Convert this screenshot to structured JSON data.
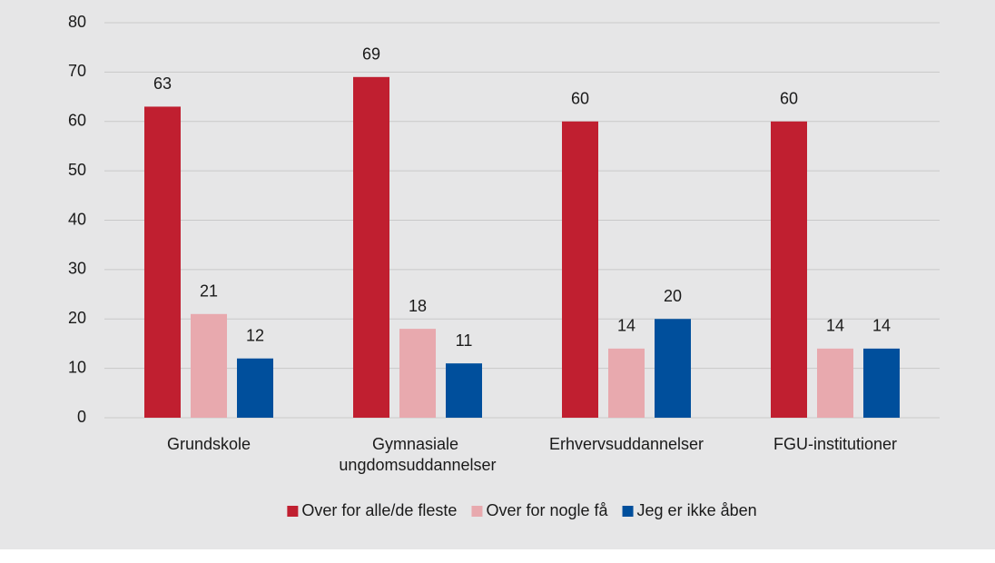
{
  "chart_data": {
    "type": "bar",
    "categories": [
      "Grundskole",
      "Gymnasiale ungdomsuddannelser",
      "Erhvervsuddannelser",
      "FGU-institutioner"
    ],
    "series": [
      {
        "name": "Over for alle/de fleste",
        "color": "#c01f30",
        "values": [
          63,
          69,
          60,
          60
        ]
      },
      {
        "name": "Over for nogle få",
        "color": "#e8a9ae",
        "values": [
          21,
          18,
          14,
          14
        ]
      },
      {
        "name": "Jeg er ikke åben",
        "color": "#004f9c",
        "values": [
          12,
          11,
          20,
          14
        ]
      }
    ],
    "ylim": [
      0,
      80
    ],
    "yticks": [
      0,
      10,
      20,
      30,
      40,
      50,
      60,
      70,
      80
    ],
    "grid": true,
    "legend": "bottom"
  }
}
